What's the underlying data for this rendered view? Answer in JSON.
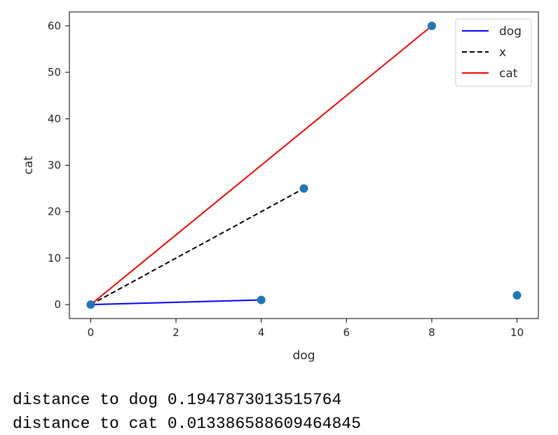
{
  "chart_data": {
    "type": "line",
    "xlabel": "dog",
    "ylabel": "cat",
    "xlim": [
      -0.5,
      10.5
    ],
    "ylim": [
      -3,
      63
    ],
    "xticks": [
      0,
      2,
      4,
      6,
      8,
      10
    ],
    "yticks": [
      0,
      10,
      20,
      30,
      40,
      50,
      60
    ],
    "grid": false,
    "legend_position": "top-right",
    "series": [
      {
        "name": "dog",
        "x": [
          0,
          4
        ],
        "y": [
          0,
          1
        ],
        "color": "#0000ff",
        "style": "solid"
      },
      {
        "name": "x",
        "x": [
          0,
          5
        ],
        "y": [
          0,
          25
        ],
        "color": "#000000",
        "style": "dashed"
      },
      {
        "name": "cat",
        "x": [
          0,
          8
        ],
        "y": [
          0,
          60
        ],
        "color": "#ff0000",
        "style": "solid"
      }
    ],
    "scatter": {
      "x": [
        0,
        4,
        5,
        8,
        10
      ],
      "y": [
        0,
        1,
        25,
        60,
        2
      ],
      "color": "#1f77b4"
    }
  },
  "output": {
    "lines": [
      "distance to dog 0.1947873013515764",
      "distance to cat 0.013386588609464845"
    ]
  }
}
